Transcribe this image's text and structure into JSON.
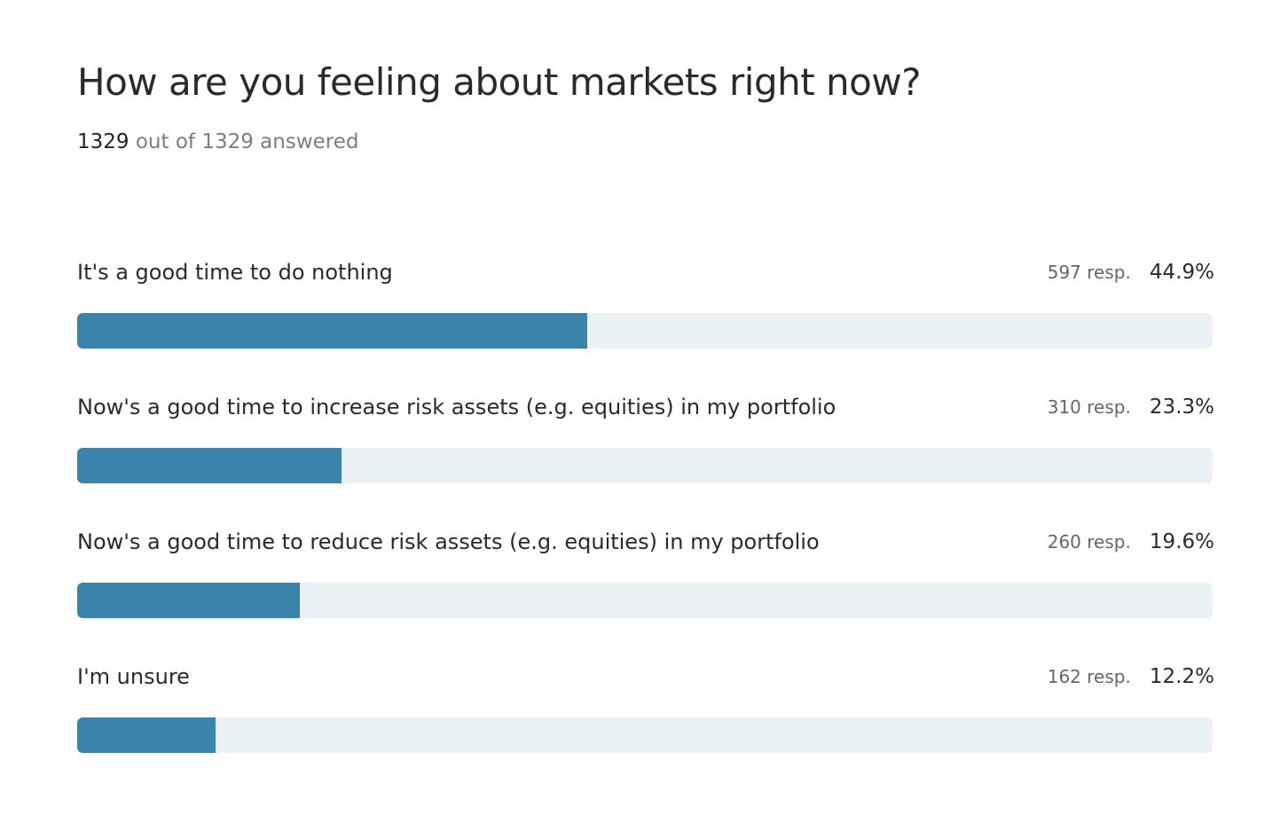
{
  "title": "How are you feeling about markets right now?",
  "summary": {
    "answered": "1329",
    "rest": " out of 1329 answered"
  },
  "colors": {
    "bar": "#3a84ab",
    "track": "#e9f1f5"
  },
  "chart_data": {
    "type": "bar",
    "orientation": "horizontal",
    "title": "How are you feeling about markets right now?",
    "categories": [
      "It's a good time to do nothing",
      "Now's a good time to increase risk assets (e.g. equities) in my portfolio",
      "Now's a good time to reduce risk assets (e.g. equities) in my portfolio",
      "I'm unsure"
    ],
    "responses": [
      597,
      310,
      260,
      162
    ],
    "resp_labels": [
      "597 resp.",
      "310 resp.",
      "260 resp.",
      "162 resp."
    ],
    "values": [
      44.9,
      23.3,
      19.6,
      12.2
    ],
    "pct_labels": [
      "44.9%",
      "23.3%",
      "19.6%",
      "12.2%"
    ],
    "xlim": [
      0,
      100
    ]
  }
}
